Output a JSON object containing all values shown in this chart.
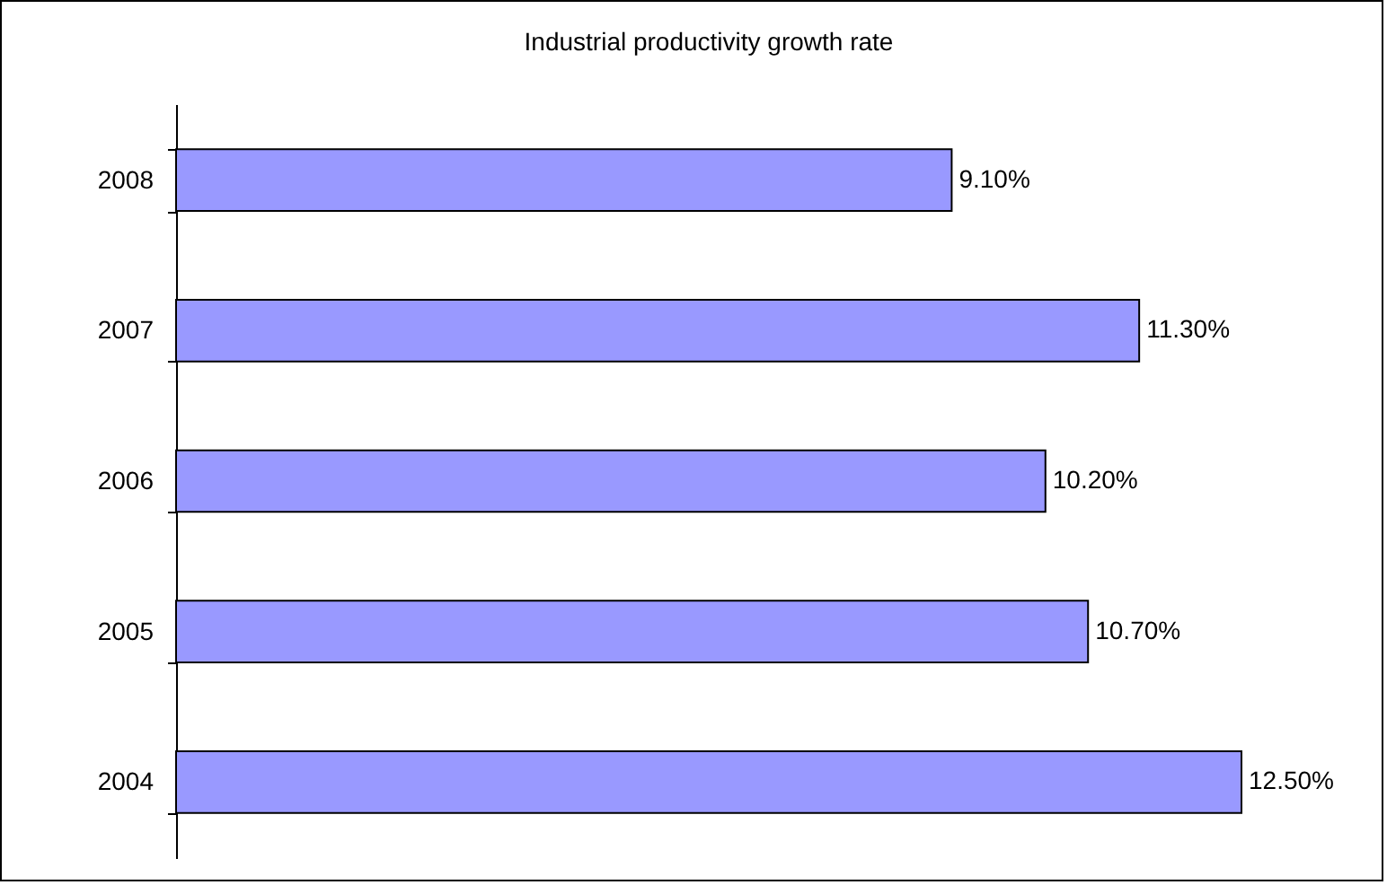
{
  "chart_data": {
    "type": "bar",
    "orientation": "horizontal",
    "title": "Industrial productivity growth rate",
    "categories": [
      "2008",
      "2007",
      "2006",
      "2005",
      "2004"
    ],
    "values": [
      9.1,
      11.3,
      10.2,
      10.7,
      12.5
    ],
    "value_labels": [
      "9.10%",
      "11.30%",
      "10.20%",
      "10.70%",
      "12.50%"
    ],
    "color": "#9999ff",
    "grid": false
  }
}
